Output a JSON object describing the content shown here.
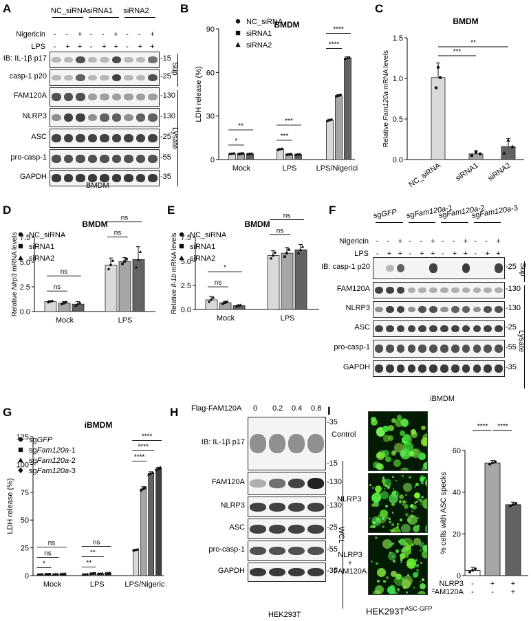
{
  "panels": {
    "A": {
      "letter": "A",
      "groups": [
        "NC_siRNA",
        "siRNA1",
        "siRNA2"
      ],
      "treat_rows": [
        "Nigericin",
        "LPS"
      ],
      "nigericin_signs": [
        "-",
        "-",
        "+",
        "-",
        "-",
        "+",
        "-",
        "-",
        "+"
      ],
      "lps_signs": [
        "-",
        "+",
        "+",
        "-",
        "+",
        "+",
        "-",
        "+",
        "+"
      ],
      "rows": [
        {
          "label": "IB: IL-1β p17",
          "mw": "-15",
          "intensities": [
            0.05,
            0.05,
            0.7,
            0.05,
            0.05,
            0.75,
            0.05,
            0.05,
            0.5
          ]
        },
        {
          "label": "casp-1 p20",
          "mw": "-25",
          "intensities": [
            0.05,
            0.05,
            0.6,
            0.05,
            0.05,
            0.8,
            0.05,
            0.05,
            0.7
          ]
        },
        {
          "label": "FAM120A",
          "mw": "-130",
          "intensities": [
            0.7,
            0.7,
            0.7,
            0.2,
            0.2,
            0.2,
            0.2,
            0.2,
            0.2
          ]
        },
        {
          "label": "NLRP3",
          "mw": "-130",
          "intensities": [
            0.3,
            0.8,
            0.8,
            0.3,
            0.6,
            0.6,
            0.3,
            0.6,
            0.6
          ]
        },
        {
          "label": "ASC",
          "mw": "-25",
          "intensities": [
            0.8,
            0.8,
            0.8,
            0.8,
            0.8,
            0.8,
            0.8,
            0.8,
            0.8
          ]
        },
        {
          "label": "pro-casp-1",
          "mw": "-55",
          "intensities": [
            0.7,
            0.7,
            0.7,
            0.7,
            0.7,
            0.7,
            0.7,
            0.7,
            0.7
          ]
        },
        {
          "label": "GAPDH",
          "mw": "-35",
          "intensities": [
            0.85,
            0.85,
            0.85,
            0.85,
            0.85,
            0.85,
            0.85,
            0.85,
            0.85
          ]
        }
      ],
      "sup_label": "Sup",
      "lysate_label": "Lysate",
      "cell_label": "BMDM"
    },
    "F": {
      "letter": "F",
      "groups": [
        {
          "prefix": "sg",
          "gene": "GFP",
          "suffix": ""
        },
        {
          "prefix": "sg",
          "gene": "Fam120a",
          "suffix": "-1"
        },
        {
          "prefix": "sg",
          "gene": "Fam120a",
          "suffix": "-2"
        },
        {
          "prefix": "sg",
          "gene": "Fam120a",
          "suffix": "-3"
        }
      ],
      "treat_rows": [
        "Nigericin",
        "LPS"
      ],
      "nigericin_signs": [
        "-",
        "-",
        "+",
        "-",
        "-",
        "+",
        "-",
        "-",
        "+",
        "-",
        "-",
        "+"
      ],
      "lps_signs": [
        "-",
        "+",
        "+",
        "-",
        "+",
        "+",
        "-",
        "+",
        "+",
        "-",
        "+",
        "+"
      ],
      "rows": [
        {
          "label": "IB: casp-1 p20",
          "mw": "-25",
          "intensities": [
            0.02,
            0.05,
            0.6,
            0.02,
            0.02,
            0.8,
            0.02,
            0.02,
            0.85,
            0.02,
            0.02,
            0.8
          ]
        },
        {
          "label": "FAM120A",
          "mw": "-130",
          "intensities": [
            0.8,
            0.8,
            0.8,
            0.1,
            0.1,
            0.1,
            0.1,
            0.1,
            0.1,
            0.1,
            0.1,
            0.1
          ]
        },
        {
          "label": "NLRP3",
          "mw": "-130",
          "intensities": [
            0.3,
            0.8,
            0.8,
            0.3,
            0.7,
            0.7,
            0.3,
            0.6,
            0.6,
            0.3,
            0.7,
            0.7
          ]
        },
        {
          "label": "ASC",
          "mw": "-25",
          "intensities": [
            0.8,
            0.8,
            0.8,
            0.8,
            0.8,
            0.8,
            0.8,
            0.8,
            0.8,
            0.8,
            0.8,
            0.8
          ]
        },
        {
          "label": "pro-casp-1",
          "mw": "-55",
          "intensities": [
            0.7,
            0.7,
            0.7,
            0.7,
            0.7,
            0.7,
            0.7,
            0.7,
            0.7,
            0.7,
            0.7,
            0.7
          ]
        },
        {
          "label": "GAPDH",
          "mw": "-35",
          "intensities": [
            0.85,
            0.85,
            0.85,
            0.85,
            0.85,
            0.85,
            0.85,
            0.85,
            0.85,
            0.85,
            0.85,
            0.85
          ]
        }
      ],
      "sup_label": "Sup",
      "lysate_label": "Lysate",
      "cell_label": "iBMDM"
    },
    "H": {
      "letter": "H",
      "header": "Flag-FAM120A",
      "doses": [
        "0",
        "0.2",
        "0.4",
        "0.8"
      ],
      "rows": [
        {
          "label": "IB: IL-1β p17",
          "mw": [
            "-35",
            "-15"
          ],
          "intensities": [
            0.3,
            0.3,
            0.3,
            0.3
          ]
        },
        {
          "label": "FAM120A",
          "mw": [
            "-130"
          ],
          "intensities": [
            0.1,
            0.5,
            0.8,
            1.0
          ]
        },
        {
          "label": "NLRP3",
          "mw": [
            "-130"
          ],
          "intensities": [
            0.8,
            0.8,
            0.8,
            0.8
          ]
        },
        {
          "label": "ASC",
          "mw": [
            "-25"
          ],
          "intensities": [
            0.8,
            0.8,
            0.8,
            0.8
          ]
        },
        {
          "label": "pro-casp-1",
          "mw": [
            "-55"
          ],
          "intensities": [
            0.7,
            0.7,
            0.7,
            0.7
          ]
        },
        {
          "label": "GAPDH",
          "mw": [
            "-35"
          ],
          "intensities": [
            0.85,
            0.85,
            0.85,
            0.85
          ]
        }
      ],
      "wcl_label": "WCL",
      "cell_label": "HEK293T"
    },
    "I": {
      "letter": "I",
      "image_labels": [
        "Control",
        "NLRP3",
        "NLRP3\n+\nFAM120A"
      ],
      "cell_label_main": "HEK293T",
      "cell_label_sup": "ASC-GFP"
    }
  },
  "chart_data": [
    {
      "id": "B",
      "letter": "B",
      "type": "bar",
      "title": "BMDM",
      "ylabel": "LDH release (%)",
      "ylim": [
        0,
        90
      ],
      "yticks": [
        0,
        30,
        60,
        90
      ],
      "categories": [
        "Mock",
        "LPS",
        "LPS/Nigericin"
      ],
      "series": [
        {
          "name": "NC_siRNA",
          "marker": "circle",
          "values": [
            4,
            7,
            27
          ],
          "errors": [
            0.3,
            0.6,
            0.8
          ]
        },
        {
          "name": "siRNA1",
          "marker": "square",
          "values": [
            4,
            3.5,
            44
          ],
          "errors": [
            0.3,
            0.4,
            0.7
          ]
        },
        {
          "name": "siRNA2",
          "marker": "triangle",
          "values": [
            4,
            3.5,
            70
          ],
          "errors": [
            0.3,
            0.4,
            0.8
          ]
        }
      ],
      "significance": [
        {
          "group": "Mock",
          "pairs": [
            {
              "text": "*",
              "from": 0,
              "to": 1
            },
            {
              "text": "**",
              "from": 0,
              "to": 2
            }
          ]
        },
        {
          "group": "LPS",
          "pairs": [
            {
              "text": "***",
              "from": 0,
              "to": 1
            },
            {
              "text": "***",
              "from": 0,
              "to": 2
            }
          ]
        },
        {
          "group": "LPS/Nigericin",
          "pairs": [
            {
              "text": "****",
              "from": 0,
              "to": 1
            },
            {
              "text": "****",
              "from": 0,
              "to": 2
            }
          ]
        }
      ],
      "legend_position": "top-left"
    },
    {
      "id": "C",
      "letter": "C",
      "type": "bar",
      "title": "BMDM",
      "ylabel_parts": [
        "Relative ",
        "Fam120a",
        " mRNA levels"
      ],
      "ylim": [
        0,
        1.5
      ],
      "yticks": [
        0.0,
        0.5,
        1.0,
        1.5
      ],
      "ytick_labels": [
        "0.0",
        "0.5",
        "1.0",
        "1.5"
      ],
      "categories": [
        "NC_siRNA",
        "siRNA1",
        "siRNA2"
      ],
      "values": [
        1.01,
        0.07,
        0.16
      ],
      "errors": [
        0.18,
        0.04,
        0.1
      ],
      "significance": [
        {
          "text": "***",
          "from": 0,
          "to": 1
        },
        {
          "text": "**",
          "from": 0,
          "to": 2
        }
      ]
    },
    {
      "id": "D",
      "letter": "D",
      "type": "bar",
      "title": "BMDM",
      "ylabel_parts": [
        "Relative ",
        "Nlrp3",
        " mRNA levels"
      ],
      "ylim": [
        0,
        7.5
      ],
      "yticks": [
        0,
        2.5,
        5,
        7.5
      ],
      "ytick_labels": [
        "0.0",
        "2.5",
        "5.0",
        "7.5"
      ],
      "categories": [
        "Mock",
        "LPS"
      ],
      "series": [
        {
          "name": "NC_siRNA",
          "marker": "circle",
          "values": [
            1.0,
            4.7
          ],
          "errors": [
            0.1,
            0.7
          ]
        },
        {
          "name": "siRNA1",
          "marker": "square",
          "values": [
            0.85,
            5.05
          ],
          "errors": [
            0.15,
            0.4
          ]
        },
        {
          "name": "siRNA2",
          "marker": "triangle",
          "values": [
            0.75,
            5.25
          ],
          "errors": [
            0.25,
            1.3
          ]
        }
      ],
      "significance": [
        {
          "group": "Mock",
          "pairs": [
            {
              "text": "ns",
              "from": 0,
              "to": 1
            },
            {
              "text": "ns",
              "from": 0,
              "to": 2
            }
          ]
        },
        {
          "group": "LPS",
          "pairs": [
            {
              "text": "ns",
              "from": 0,
              "to": 1
            },
            {
              "text": "ns",
              "from": 0,
              "to": 2
            }
          ]
        }
      ],
      "legend_position": "top-left"
    },
    {
      "id": "E",
      "letter": "E",
      "type": "bar",
      "title": "BMDM",
      "ylabel_parts": [
        "Relative ",
        "Il-1b",
        " mRNA levels"
      ],
      "ylim": [
        0,
        7.5
      ],
      "yticks": [
        0,
        2.5,
        5,
        7.5
      ],
      "ytick_labels": [
        "0.0",
        "2.5",
        "5.0",
        "7.5"
      ],
      "categories": [
        "Mock",
        "LPS"
      ],
      "series": [
        {
          "name": "NC_siRNA",
          "marker": "circle",
          "values": [
            1.0,
            5.6
          ],
          "errors": [
            0.35,
            0.5
          ]
        },
        {
          "name": "siRNA1",
          "marker": "square",
          "values": [
            0.7,
            5.85
          ],
          "errors": [
            0.15,
            0.6
          ]
        },
        {
          "name": "siRNA2",
          "marker": "triangle",
          "values": [
            0.4,
            6.2
          ],
          "errors": [
            0.1,
            0.55
          ]
        }
      ],
      "significance": [
        {
          "group": "Mock",
          "pairs": [
            {
              "text": "ns",
              "from": 0,
              "to": 1
            },
            {
              "text": "*",
              "from": 0,
              "to": 2
            }
          ]
        },
        {
          "group": "LPS",
          "pairs": [
            {
              "text": "ns",
              "from": 0,
              "to": 1
            },
            {
              "text": "ns",
              "from": 0,
              "to": 2
            }
          ]
        }
      ],
      "legend_position": "top-left"
    },
    {
      "id": "G",
      "letter": "G",
      "type": "bar",
      "title": "iBMDM",
      "ylabel": "LDH release (%)",
      "ylim": [
        0,
        125
      ],
      "yticks": [
        0,
        25,
        50,
        75,
        100,
        125
      ],
      "categories": [
        "Mock",
        "LPS",
        "LPS/Nigericin"
      ],
      "series": [
        {
          "name_prefix": "sg",
          "name_gene": "GFP",
          "name_suffix": "",
          "marker": "circle",
          "values": [
            1.0,
            1.0,
            23
          ],
          "errors": [
            0.2,
            0.2,
            0.8
          ]
        },
        {
          "name_prefix": "sg",
          "name_gene": "Fam120a",
          "name_suffix": "-1",
          "marker": "square",
          "values": [
            1.2,
            1.8,
            78
          ],
          "errors": [
            0.2,
            0.3,
            2.0
          ]
        },
        {
          "name_prefix": "sg",
          "name_gene": "Fam120a",
          "name_suffix": "-2",
          "marker": "triangle",
          "values": [
            1.3,
            1.9,
            92
          ],
          "errors": [
            0.2,
            0.3,
            1.5
          ]
        },
        {
          "name_prefix": "sg",
          "name_gene": "Fam120a",
          "name_suffix": "-3",
          "marker": "diamond",
          "values": [
            1.3,
            1.9,
            96
          ],
          "errors": [
            0.2,
            0.3,
            1.5
          ]
        }
      ],
      "significance": [
        {
          "group": "Mock",
          "pairs": [
            {
              "text": "*",
              "from": 0,
              "to": 1
            },
            {
              "text": "ns",
              "from": 0,
              "to": 2
            },
            {
              "text": "ns",
              "from": 0,
              "to": 3
            }
          ]
        },
        {
          "group": "LPS",
          "pairs": [
            {
              "text": "**",
              "from": 0,
              "to": 1
            },
            {
              "text": "**",
              "from": 0,
              "to": 2
            },
            {
              "text": "ns",
              "from": 0,
              "to": 3
            }
          ]
        },
        {
          "group": "LPS/Nigericin",
          "pairs": [
            {
              "text": "****",
              "from": 0,
              "to": 1
            },
            {
              "text": "****",
              "from": 0,
              "to": 2
            },
            {
              "text": "****",
              "from": 0,
              "to": 3
            }
          ]
        }
      ],
      "legend_position": "top-left"
    },
    {
      "id": "I",
      "type": "bar",
      "ylabel": "% cells with ASC specks",
      "ylim": [
        0,
        60
      ],
      "yticks": [
        0,
        20,
        40,
        60
      ],
      "categories": [
        "Control",
        "NLRP3",
        "NLRP3 + FAM120A"
      ],
      "values": [
        2.5,
        54,
        34
      ],
      "errors": [
        1.5,
        1.2,
        1.2
      ],
      "row_labels": [
        "NLRP3",
        "FAM120A"
      ],
      "row_signs": [
        [
          "-",
          "+",
          "+"
        ],
        [
          "-",
          "-",
          "+"
        ]
      ],
      "significance": [
        {
          "text": "****",
          "from": 0,
          "to": 1
        },
        {
          "text": "****",
          "from": 1,
          "to": 2
        }
      ]
    }
  ]
}
